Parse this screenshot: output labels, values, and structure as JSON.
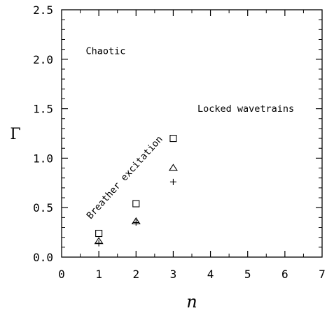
{
  "chart_data": {
    "type": "scatter",
    "xlabel": "n",
    "ylabel": "Γ",
    "xlim": [
      0,
      7
    ],
    "ylim": [
      0,
      2.5
    ],
    "x_ticks": [
      "0",
      "1",
      "2",
      "3",
      "4",
      "5",
      "6",
      "7"
    ],
    "y_ticks": [
      "0.0",
      "0.5",
      "1.0",
      "1.5",
      "2.0",
      "2.5"
    ],
    "grid": false,
    "series": [
      {
        "marker": "square",
        "x": [
          1,
          2,
          3
        ],
        "y": [
          0.24,
          0.54,
          1.2
        ]
      },
      {
        "marker": "triangle",
        "x": [
          1,
          2,
          3
        ],
        "y": [
          0.16,
          0.36,
          0.9
        ]
      },
      {
        "marker": "plus",
        "x": [
          1,
          2,
          3
        ],
        "y": [
          0.14,
          0.35,
          0.76
        ]
      }
    ],
    "annotations": [
      {
        "text": "Chaotic",
        "x": 0.65,
        "y": 2.05,
        "rotation": 0
      },
      {
        "text": "Locked wavetrains",
        "x": 3.65,
        "y": 1.47,
        "rotation": 0
      },
      {
        "text": "Breather excitation",
        "x": 0.78,
        "y": 0.38,
        "rotation": -48
      }
    ]
  }
}
